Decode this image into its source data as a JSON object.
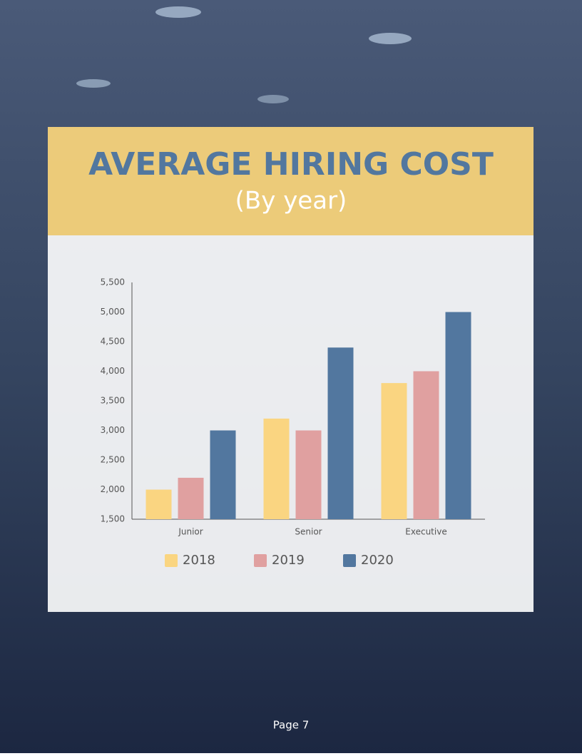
{
  "chart_data": {
    "type": "bar",
    "title": "AVERAGE HIRING COST",
    "subtitle": "(By year)",
    "categories": [
      "Junior",
      "Senior",
      "Executive"
    ],
    "series": [
      {
        "name": "2018",
        "color": "#fad581",
        "values": [
          2000,
          3200,
          3800
        ]
      },
      {
        "name": "2019",
        "color": "#e0a0a0",
        "values": [
          2200,
          3000,
          4000
        ]
      },
      {
        "name": "2020",
        "color": "#52779f",
        "values": [
          3000,
          4400,
          5000
        ]
      }
    ],
    "ylim": [
      1500,
      5500
    ],
    "yticks": [
      {
        "value": 1500,
        "label": "1,500"
      },
      {
        "value": 2000,
        "label": "2,000"
      },
      {
        "value": 2500,
        "label": "2,500"
      },
      {
        "value": 3000,
        "label": "3,000"
      },
      {
        "value": 3500,
        "label": "3,500"
      },
      {
        "value": 4000,
        "label": "4,000"
      },
      {
        "value": 4500,
        "label": "4,500"
      },
      {
        "value": 5000,
        "label": "5,000"
      },
      {
        "value": 5500,
        "label": "5,500"
      }
    ],
    "grid": false,
    "legend": "bottom"
  },
  "page_label": "Page 7"
}
